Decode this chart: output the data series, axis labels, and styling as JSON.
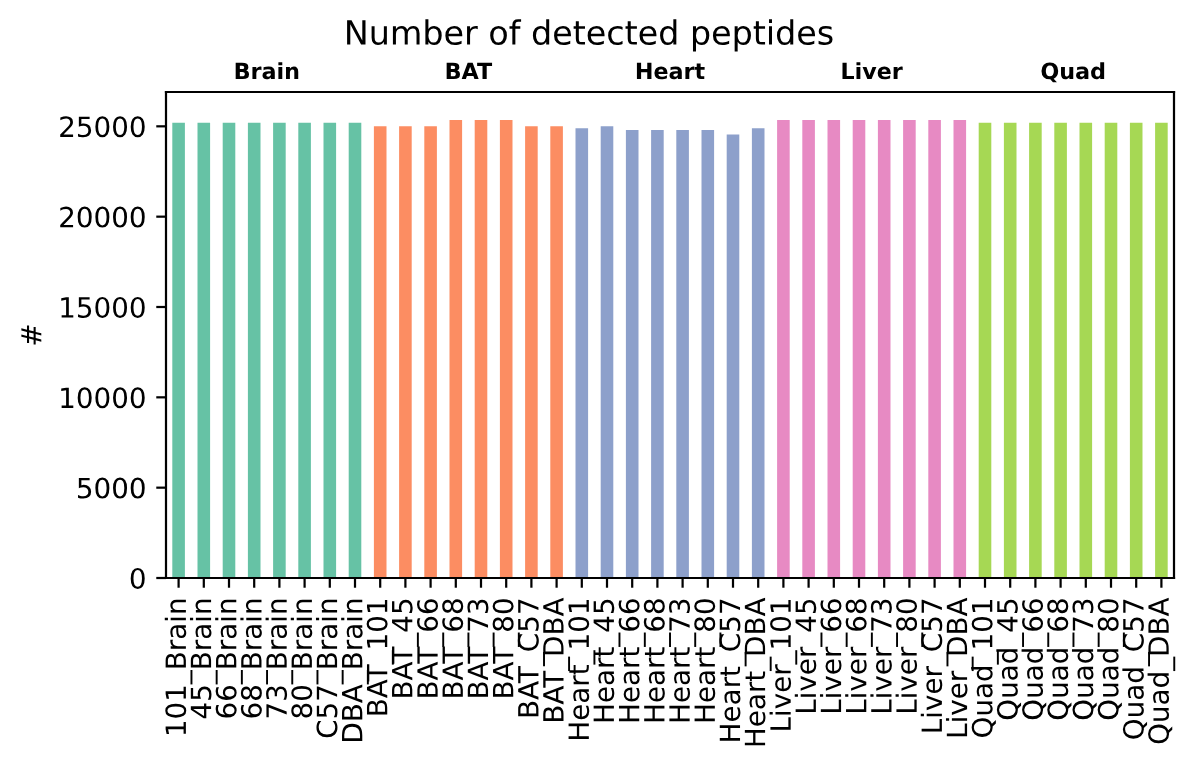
{
  "chart_data": {
    "type": "bar",
    "title": "Number of detected peptides",
    "ylabel": "#",
    "categories": [
      "101_Brain",
      "45_Brain",
      "66_Brain",
      "68_Brain",
      "73_Brain",
      "80_Brain",
      "C57_Brain",
      "DBA_Brain",
      "BAT_101",
      "BAT_45",
      "BAT_66",
      "BAT_68",
      "BAT_73",
      "BAT_80",
      "BAT_C57",
      "BAT_DBA",
      "Heart_101",
      "Heart_45",
      "Heart_66",
      "Heart_68",
      "Heart_73",
      "Heart_80",
      "Heart_C57",
      "Heart_DBA",
      "Liver_101",
      "Liver_45",
      "Liver_66",
      "Liver_68",
      "Liver_73",
      "Liver_80",
      "Liver_C57",
      "Liver_DBA",
      "Quad_101",
      "Quad_45",
      "Quad_66",
      "Quad_68",
      "Quad_73",
      "Quad_80",
      "Quad_C57",
      "Quad_DBA"
    ],
    "values": [
      25200,
      25200,
      25200,
      25200,
      25200,
      25200,
      25200,
      25200,
      25000,
      25000,
      25000,
      25350,
      25350,
      25350,
      25000,
      25000,
      24900,
      25000,
      24800,
      24800,
      24800,
      24800,
      24550,
      24900,
      25350,
      25350,
      25350,
      25350,
      25350,
      25350,
      25350,
      25350,
      25200,
      25200,
      25200,
      25200,
      25200,
      25200,
      25200,
      25200
    ],
    "colors": [
      "#66c2a5",
      "#66c2a5",
      "#66c2a5",
      "#66c2a5",
      "#66c2a5",
      "#66c2a5",
      "#66c2a5",
      "#66c2a5",
      "#fc8d62",
      "#fc8d62",
      "#fc8d62",
      "#fc8d62",
      "#fc8d62",
      "#fc8d62",
      "#fc8d62",
      "#fc8d62",
      "#8da0cb",
      "#8da0cb",
      "#8da0cb",
      "#8da0cb",
      "#8da0cb",
      "#8da0cb",
      "#8da0cb",
      "#8da0cb",
      "#e78ac3",
      "#e78ac3",
      "#e78ac3",
      "#e78ac3",
      "#e78ac3",
      "#e78ac3",
      "#e78ac3",
      "#e78ac3",
      "#a6d854",
      "#a6d854",
      "#a6d854",
      "#a6d854",
      "#a6d854",
      "#a6d854",
      "#a6d854",
      "#a6d854"
    ],
    "annotations": [
      "Brain",
      "BAT",
      "Heart",
      "Liver",
      "Quad"
    ],
    "ylim": [
      0,
      26900
    ],
    "yticks": [
      0,
      5000,
      10000,
      15000,
      20000,
      25000
    ],
    "grid": false,
    "legend": false
  }
}
